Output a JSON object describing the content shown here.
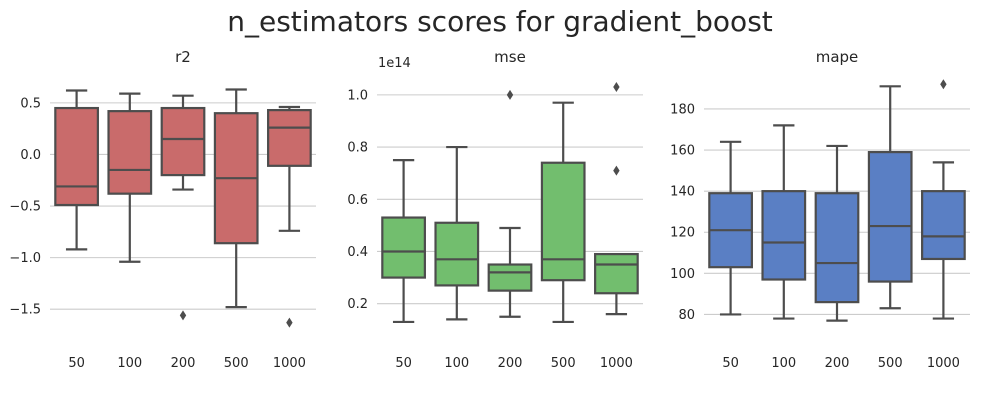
{
  "figure": {
    "suptitle": "n_estimators scores for gradient_boost"
  },
  "chart_data": [
    {
      "type": "box",
      "title": "r2",
      "categories": [
        "50",
        "100",
        "200",
        "500",
        "1000"
      ],
      "color": "#c96b6b",
      "ylim": [
        -1.75,
        0.78
      ],
      "yticks": [
        0.5,
        0.0,
        -0.5,
        -1.0,
        -1.5
      ],
      "ytick_labels": [
        "0.5",
        "0.0",
        "−0.5",
        "−1.0",
        "−1.5"
      ],
      "offset_label": "",
      "grid": true,
      "boxes": [
        {
          "whislo": -0.92,
          "q1": -0.49,
          "med": -0.31,
          "q3": 0.45,
          "whishi": 0.62,
          "fliers": []
        },
        {
          "whislo": -1.04,
          "q1": -0.38,
          "med": -0.15,
          "q3": 0.42,
          "whishi": 0.59,
          "fliers": []
        },
        {
          "whislo": -0.34,
          "q1": -0.2,
          "med": 0.15,
          "q3": 0.45,
          "whishi": 0.57,
          "fliers": [
            -1.56
          ]
        },
        {
          "whislo": -1.48,
          "q1": -0.86,
          "med": -0.23,
          "q3": 0.4,
          "whishi": 0.63,
          "fliers": []
        },
        {
          "whislo": -0.74,
          "q1": -0.11,
          "med": 0.26,
          "q3": 0.43,
          "whishi": 0.46,
          "fliers": [
            -1.63
          ]
        }
      ]
    },
    {
      "type": "box",
      "title": "mse",
      "categories": [
        "50",
        "100",
        "200",
        "500",
        "1000"
      ],
      "color": "#72be6e",
      "ylim": [
        0.08,
        1.08
      ],
      "yticks": [
        1.0,
        0.8,
        0.6,
        0.4,
        0.2
      ],
      "ytick_labels": [
        "1.0",
        "0.8",
        "0.6",
        "0.4",
        "0.2"
      ],
      "offset_label": "1e14",
      "grid": true,
      "boxes": [
        {
          "whislo": 0.13,
          "q1": 0.3,
          "med": 0.4,
          "q3": 0.53,
          "whishi": 0.75,
          "fliers": []
        },
        {
          "whislo": 0.14,
          "q1": 0.27,
          "med": 0.37,
          "q3": 0.51,
          "whishi": 0.8,
          "fliers": []
        },
        {
          "whislo": 0.15,
          "q1": 0.25,
          "med": 0.32,
          "q3": 0.35,
          "whishi": 0.49,
          "fliers": [
            1.0
          ]
        },
        {
          "whislo": 0.13,
          "q1": 0.29,
          "med": 0.37,
          "q3": 0.74,
          "whishi": 0.97,
          "fliers": []
        },
        {
          "whislo": 0.16,
          "q1": 0.24,
          "med": 0.35,
          "q3": 0.39,
          "whishi": 0.39,
          "fliers": [
            0.71,
            1.03
          ]
        }
      ]
    },
    {
      "type": "box",
      "title": "mape",
      "categories": [
        "50",
        "100",
        "200",
        "500",
        "1000"
      ],
      "color": "#5a7fc4",
      "ylim": [
        70,
        197
      ],
      "yticks": [
        180,
        160,
        140,
        120,
        100,
        80
      ],
      "ytick_labels": [
        "180",
        "160",
        "140",
        "120",
        "100",
        "80"
      ],
      "offset_label": "",
      "grid": true,
      "boxes": [
        {
          "whislo": 80,
          "q1": 103,
          "med": 121,
          "q3": 139,
          "whishi": 164,
          "fliers": []
        },
        {
          "whislo": 78,
          "q1": 97,
          "med": 115,
          "q3": 140,
          "whishi": 172,
          "fliers": []
        },
        {
          "whislo": 77,
          "q1": 86,
          "med": 105,
          "q3": 139,
          "whishi": 162,
          "fliers": []
        },
        {
          "whislo": 83,
          "q1": 96,
          "med": 123,
          "q3": 159,
          "whishi": 191,
          "fliers": []
        },
        {
          "whislo": 78,
          "q1": 107,
          "med": 118,
          "q3": 140,
          "whishi": 154,
          "fliers": [
            192
          ]
        }
      ]
    }
  ]
}
